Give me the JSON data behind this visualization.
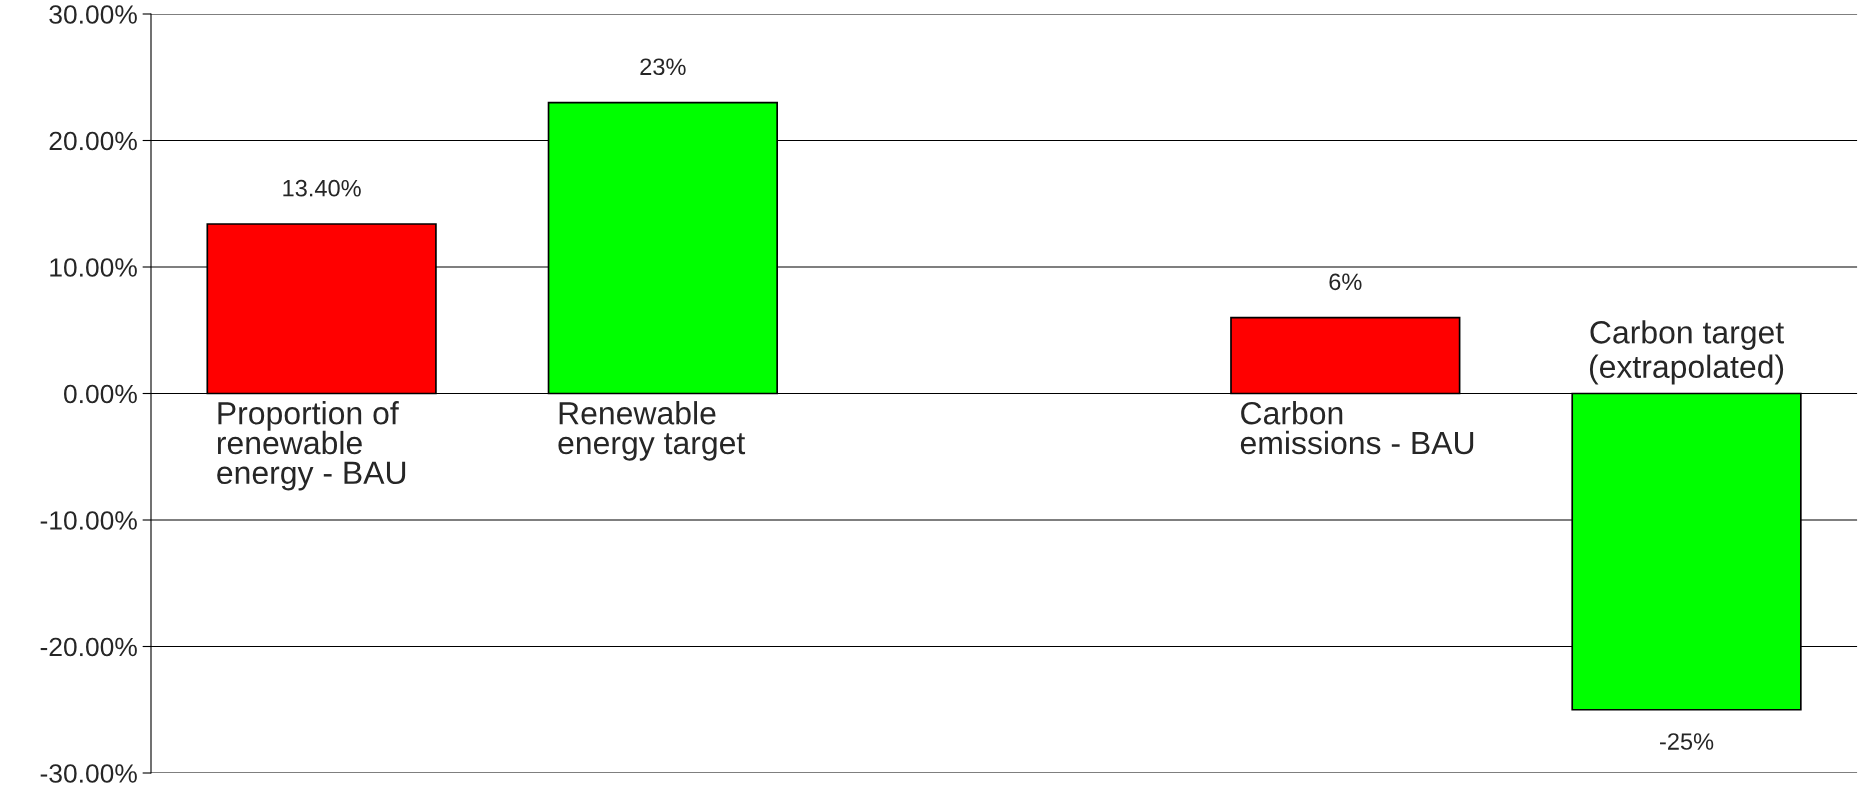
{
  "chart_data": {
    "type": "bar",
    "categories": [
      "Proportion of\nrenewable\nenergy - BAU",
      "Renewable\nenergy target",
      null,
      "Carbon\nemissions - BAU",
      "Carbon target\n(extrapolated)"
    ],
    "values": [
      13.4,
      23,
      null,
      6,
      -25
    ],
    "colors": [
      "#ff0000",
      "#00ff00",
      "#ff0000",
      "#ff0000",
      "#00ff00"
    ],
    "value_labels": [
      "13.40%",
      "23%",
      null,
      "6%",
      "-25%"
    ],
    "ylim": [
      -30,
      30
    ],
    "yticks": [
      {
        "value": -30,
        "label": "-30.00%"
      },
      {
        "value": -20,
        "label": "-20.00%"
      },
      {
        "value": -10,
        "label": "-10.00%"
      },
      {
        "value": 0,
        "label": "0.00%"
      },
      {
        "value": 10,
        "label": "10.00%"
      },
      {
        "value": 20,
        "label": "20.00%"
      },
      {
        "value": 30,
        "label": "30.00%"
      }
    ],
    "grid": "y",
    "tick_labels": "y"
  }
}
